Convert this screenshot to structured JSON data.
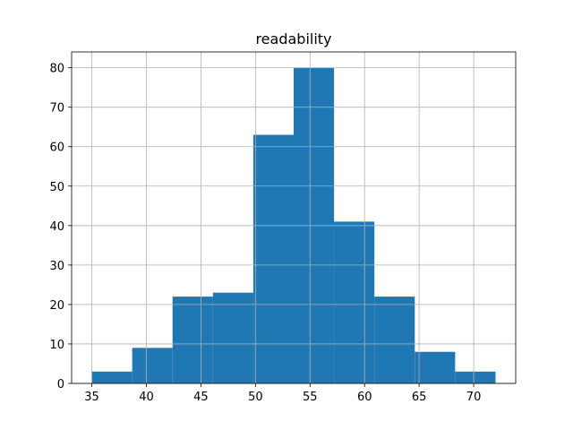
{
  "chart_data": {
    "type": "histogram",
    "title": "readability",
    "bins": [
      35,
      38.7,
      42.4,
      46.1,
      49.8,
      53.5,
      57.2,
      60.9,
      64.6,
      68.3,
      72
    ],
    "values": [
      3,
      9,
      22,
      23,
      63,
      80,
      41,
      22,
      8,
      3
    ],
    "color": "#1f77b4",
    "xlim": [
      33.15,
      73.85
    ],
    "xticks": [
      35,
      40,
      45,
      50,
      55,
      60,
      65,
      70
    ],
    "ylim": [
      0,
      84
    ],
    "yticks": [
      0,
      10,
      20,
      30,
      40,
      50,
      60,
      70,
      80
    ],
    "grid": true
  }
}
